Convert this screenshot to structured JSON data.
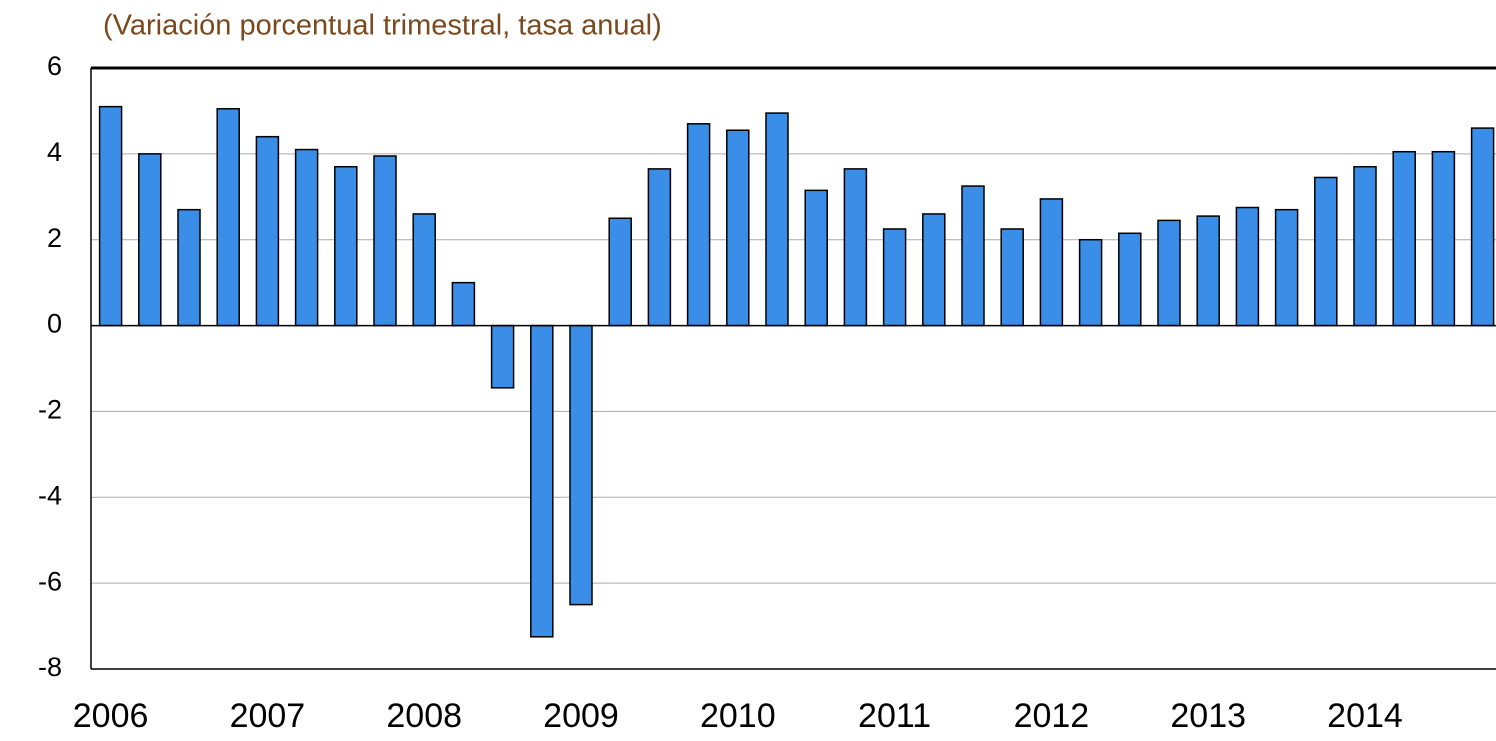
{
  "chart_data": {
    "type": "bar",
    "title": "(Variación porcentual trimestral, tasa anual)",
    "categories": [
      "2006",
      null,
      null,
      null,
      "2007",
      null,
      null,
      null,
      "2008",
      null,
      null,
      null,
      "2009",
      null,
      null,
      null,
      "2010",
      null,
      null,
      null,
      "2011",
      null,
      null,
      null,
      "2012",
      null,
      null,
      null,
      "2013",
      null,
      null,
      null,
      "2014",
      null,
      null,
      null
    ],
    "values": [
      5.1,
      4.0,
      2.7,
      5.05,
      4.4,
      4.1,
      3.7,
      3.95,
      2.6,
      1.0,
      -1.45,
      -7.25,
      -6.5,
      2.5,
      3.65,
      4.7,
      4.55,
      4.95,
      3.15,
      3.65,
      2.25,
      2.6,
      3.25,
      2.25,
      2.95,
      2.0,
      2.15,
      2.45,
      2.55,
      2.75,
      2.7,
      3.45,
      3.7,
      4.05,
      4.05,
      4.6
    ],
    "color": "#3a8ee8",
    "ylim": [
      -8,
      6
    ],
    "yticks": [
      -8,
      -6,
      -4,
      -2,
      0,
      2,
      4,
      6
    ],
    "grid": true
  }
}
